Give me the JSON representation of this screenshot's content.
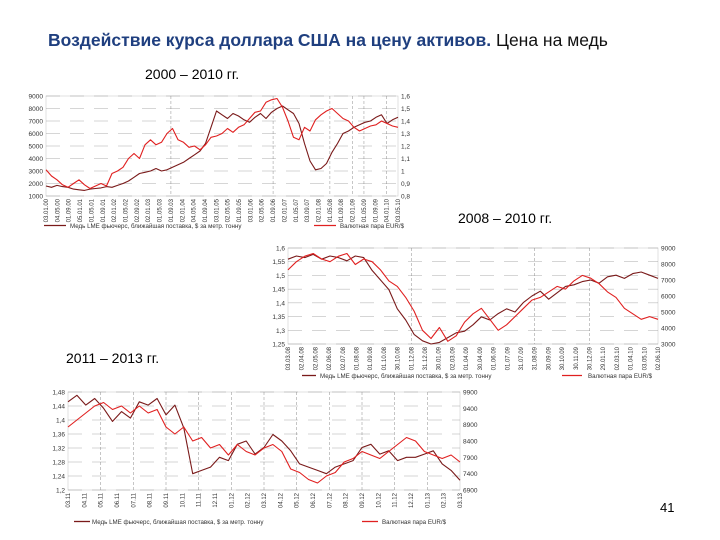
{
  "slide": {
    "title_part1": "Воздействие курса доллара США на цену активов.",
    "title_part2": "Цена на медь",
    "page_number": "41"
  },
  "colors": {
    "copper": "#7a1a1a",
    "eurusd": "#e02020",
    "title": "#1f3f7f",
    "gridline": "#888888"
  },
  "chart_data": [
    {
      "id": "chart-2000-2010",
      "caption": "2000 – 2010 гг.",
      "type": "line",
      "y_left_ticks": [
        "9000",
        "8000",
        "7000",
        "6000",
        "5000",
        "4000",
        "3000",
        "2000",
        "1000"
      ],
      "y_right_ticks": [
        "1,6",
        "1,5",
        "1,4",
        "1,3",
        "1,2",
        "1,1",
        "1",
        "0,9",
        "0,8"
      ],
      "y_left_range": [
        1000,
        9000
      ],
      "y_right_range": [
        0.8,
        1.6
      ],
      "x_ticks": [
        "03.01.00",
        "04.05.00",
        "01.09.00",
        "05.01.01",
        "01.05.01",
        "01.09.01",
        "02.01.02",
        "01.05.02",
        "02.09.02",
        "02.01.03",
        "01.05.03",
        "01.09.03",
        "02.01.04",
        "04.05.04",
        "01.09.04",
        "03.01.05",
        "02.05.05",
        "01.09.05",
        "03.01.06",
        "02.05.06",
        "01.09.06",
        "02.01.07",
        "01.05.07",
        "03.09.07",
        "02.01.08",
        "01.05.08",
        "01.09.08",
        "02.01.09",
        "01.05.09",
        "01.09.09",
        "04.01.10",
        "03.05.10"
      ],
      "series": [
        {
          "name": "Медь LME фьючерс, ближайшая поставка, $ за метр. тонну",
          "axis": "left",
          "values": [
            1800,
            1700,
            1850,
            1750,
            1700,
            1550,
            1500,
            1450,
            1550,
            1600,
            1650,
            1750,
            1700,
            1850,
            2000,
            2200,
            2500,
            2800,
            2900,
            3000,
            3200,
            3000,
            3100,
            3300,
            3500,
            3700,
            4000,
            4300,
            4600,
            5200,
            6500,
            7800,
            7500,
            7200,
            7600,
            7400,
            7100,
            6900,
            7300,
            7600,
            7200,
            7700,
            8000,
            8200,
            7900,
            7600,
            6800,
            5200,
            3800,
            3100,
            3200,
            3600,
            4500,
            5200,
            6000,
            6200,
            6500,
            6700,
            6900,
            7000,
            7300,
            7500,
            6800,
            7100,
            7300
          ]
        },
        {
          "name": "Валютная пара EUR/$",
          "axis": "right",
          "values": [
            1.01,
            0.96,
            0.93,
            0.89,
            0.87,
            0.9,
            0.93,
            0.89,
            0.86,
            0.88,
            0.9,
            0.88,
            0.98,
            1.0,
            1.03,
            1.1,
            1.14,
            1.1,
            1.21,
            1.25,
            1.21,
            1.23,
            1.3,
            1.34,
            1.25,
            1.23,
            1.19,
            1.2,
            1.17,
            1.21,
            1.27,
            1.28,
            1.3,
            1.34,
            1.31,
            1.35,
            1.37,
            1.42,
            1.47,
            1.48,
            1.55,
            1.57,
            1.58,
            1.51,
            1.4,
            1.27,
            1.25,
            1.35,
            1.32,
            1.41,
            1.45,
            1.48,
            1.5,
            1.46,
            1.42,
            1.4,
            1.35,
            1.32,
            1.34,
            1.36,
            1.37,
            1.4,
            1.38,
            1.36,
            1.35
          ]
        }
      ],
      "legend": "bottom"
    },
    {
      "id": "chart-2008-2010",
      "caption": "2008 – 2010 гг.",
      "type": "line",
      "y_left_ticks": [
        "1,6",
        "1,55",
        "1,5",
        "1,45",
        "1,4",
        "1,35",
        "1,3",
        "1,25"
      ],
      "y_right_ticks": [
        "9000",
        "8000",
        "7000",
        "6000",
        "5000",
        "4000",
        "3000"
      ],
      "y_left_range": [
        1.25,
        1.6
      ],
      "y_right_range": [
        3000,
        9000
      ],
      "x_ticks": [
        "03.03.08",
        "02.04.08",
        "02.05.08",
        "02.06.08",
        "02.07.08",
        "01.08.08",
        "01.09.08",
        "01.10.08",
        "30.10.08",
        "01.12.08",
        "31.12.08",
        "30.01.09",
        "02.03.09",
        "01.04.09",
        "30.04.09",
        "01.06.09",
        "01.07.09",
        "31.07.09",
        "31.08.09",
        "30.09.09",
        "30.10.09",
        "30.11.09",
        "30.12.09",
        "29.01.10",
        "02.03.10",
        "01.04.10",
        "03.05.10",
        "02.06.10"
      ],
      "series": [
        {
          "name": "Медь LME фьючерс, ближайшая поставка, $ за метр. тонну",
          "axis": "right",
          "values": [
            8300,
            8500,
            8400,
            8600,
            8300,
            8500,
            8400,
            8200,
            8500,
            8400,
            7600,
            7000,
            6400,
            5200,
            4500,
            3600,
            3200,
            3000,
            3100,
            3400,
            3700,
            3800,
            4200,
            4700,
            4500,
            4900,
            5200,
            5000,
            5600,
            6000,
            6300,
            5800,
            6200,
            6600,
            6700,
            6900,
            7000,
            6800,
            7200,
            7300,
            7100,
            7400,
            7500,
            7300,
            7100
          ]
        },
        {
          "name": "Валютная пара EUR/$",
          "axis": "left",
          "values": [
            1.52,
            1.55,
            1.57,
            1.58,
            1.56,
            1.55,
            1.57,
            1.58,
            1.54,
            1.56,
            1.55,
            1.52,
            1.48,
            1.46,
            1.42,
            1.37,
            1.3,
            1.27,
            1.31,
            1.26,
            1.28,
            1.33,
            1.36,
            1.38,
            1.34,
            1.3,
            1.32,
            1.35,
            1.38,
            1.41,
            1.42,
            1.44,
            1.46,
            1.45,
            1.48,
            1.5,
            1.49,
            1.47,
            1.44,
            1.42,
            1.38,
            1.36,
            1.34,
            1.35,
            1.34
          ]
        }
      ],
      "legend": "bottom"
    },
    {
      "id": "chart-2011-2013",
      "caption": "2011 – 2013 гг.",
      "type": "line",
      "y_left_ticks": [
        "1,48",
        "1,44",
        "1,4",
        "1,36",
        "1,32",
        "1,28",
        "1,24",
        "1,2"
      ],
      "y_right_ticks": [
        "9900",
        "9400",
        "8900",
        "8400",
        "7900",
        "7400",
        "6900"
      ],
      "y_left_range": [
        1.2,
        1.48
      ],
      "y_right_range": [
        6900,
        9900
      ],
      "x_ticks": [
        "03.11",
        "04.11",
        "05.11",
        "06.11",
        "07.11",
        "08.11",
        "09.11",
        "10.11",
        "11.11",
        "12.11",
        "01.12",
        "02.12",
        "03.12",
        "04.12",
        "05.12",
        "06.12",
        "07.12",
        "08.12",
        "09.12",
        "10.12",
        "11.12",
        "12.12",
        "01.13",
        "02.13",
        "03.13"
      ],
      "series": [
        {
          "name": "Медь LME фьючерс, ближайшая поставка, $ за метр. тонну",
          "axis": "right",
          "values": [
            9600,
            9800,
            9500,
            9700,
            9400,
            9000,
            9300,
            9100,
            9600,
            9500,
            9700,
            9200,
            9500,
            8800,
            7400,
            7500,
            7600,
            7900,
            7800,
            8300,
            8400,
            8000,
            8200,
            8600,
            8400,
            8100,
            7700,
            7600,
            7500,
            7400,
            7600,
            7700,
            7800,
            8200,
            8300,
            8000,
            8100,
            7800,
            7900,
            7900,
            8000,
            8100,
            7700,
            7500,
            7200
          ]
        },
        {
          "name": "Валютная пара EUR/$",
          "axis": "left",
          "values": [
            1.38,
            1.4,
            1.42,
            1.44,
            1.45,
            1.43,
            1.44,
            1.42,
            1.44,
            1.42,
            1.43,
            1.38,
            1.36,
            1.38,
            1.34,
            1.35,
            1.32,
            1.33,
            1.3,
            1.33,
            1.31,
            1.3,
            1.32,
            1.33,
            1.31,
            1.26,
            1.25,
            1.23,
            1.22,
            1.24,
            1.25,
            1.28,
            1.29,
            1.31,
            1.3,
            1.29,
            1.31,
            1.33,
            1.35,
            1.34,
            1.31,
            1.3,
            1.29,
            1.3,
            1.28
          ]
        }
      ],
      "legend": "bottom"
    }
  ]
}
